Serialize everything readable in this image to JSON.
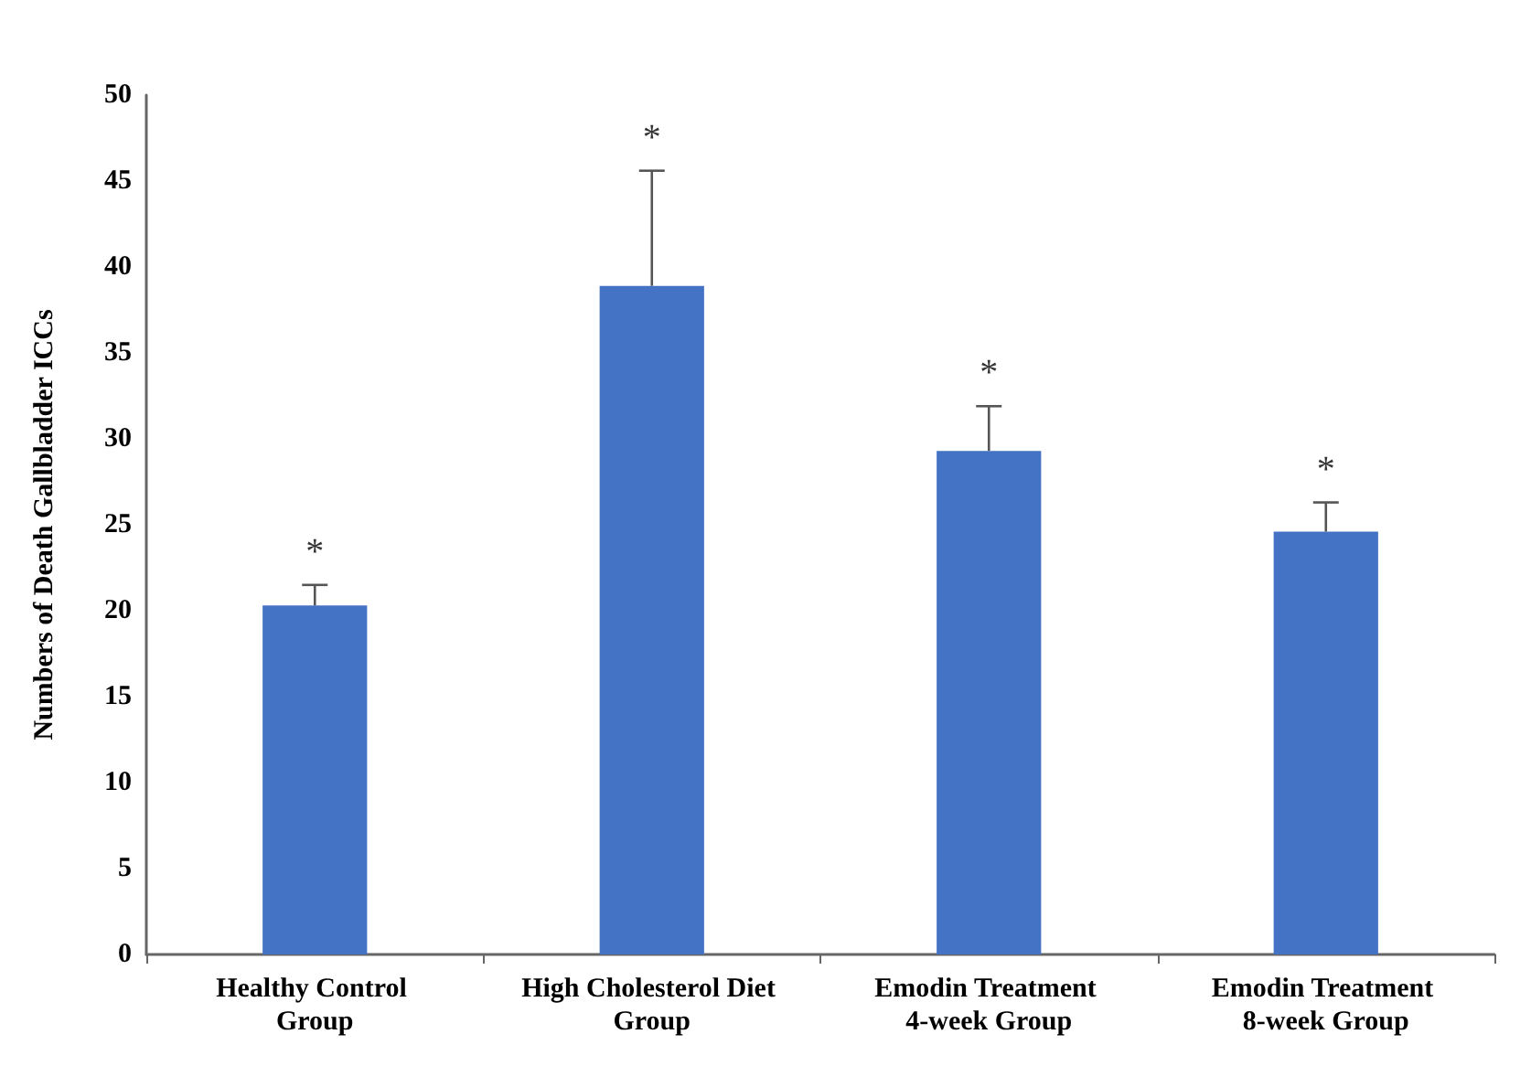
{
  "chart_data": {
    "type": "bar",
    "ylabel": "Numbers of Death Gallbladder ICCs",
    "categories": [
      "Healthy Control Group",
      "High Cholesterol Diet Group",
      "Emodin Treatment 4-week Group",
      "Emodin Treatment 8-week Group"
    ],
    "values": [
      20.3,
      38.9,
      29.3,
      24.6
    ],
    "errors": [
      [
        20.3,
        21.5
      ],
      [
        38.9,
        45.6
      ],
      [
        29.3,
        31.9
      ],
      [
        24.6,
        26.3
      ]
    ],
    "color": "#4472c4",
    "ylim": [
      0,
      50
    ],
    "yticks": [
      0,
      5,
      10,
      15,
      20,
      25,
      30,
      35,
      40,
      45,
      50
    ],
    "grid": false,
    "annotations": [
      "*",
      "*",
      "*",
      "*"
    ]
  }
}
